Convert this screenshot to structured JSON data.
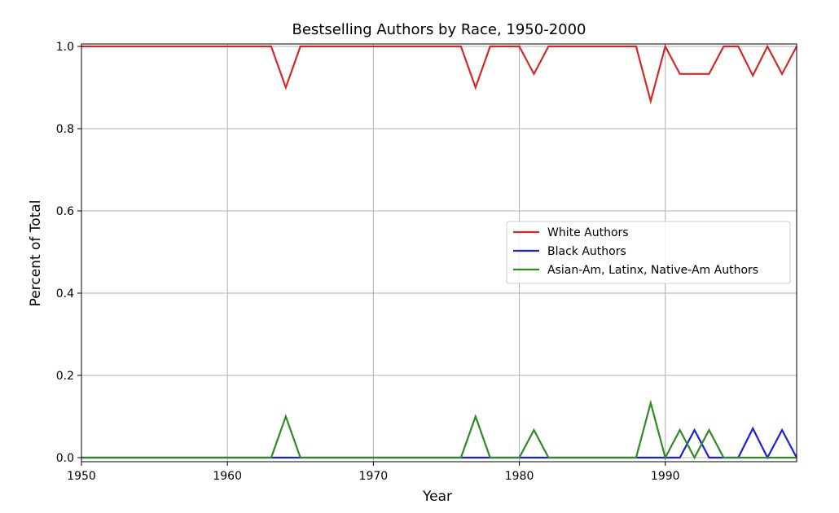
{
  "chart_data": {
    "type": "line",
    "title": "Bestselling Authors by Race, 1950-2000",
    "xlabel": "Year",
    "ylabel": "Percent of Total",
    "xlim": [
      1950,
      1999
    ],
    "ylim": [
      0.0,
      1.0
    ],
    "x_ticks": [
      1950,
      1960,
      1970,
      1980,
      1990
    ],
    "x_tick_labels": [
      "1950",
      "1960",
      "1970",
      "1980",
      "1990"
    ],
    "y_ticks": [
      0.0,
      0.2,
      0.4,
      0.6,
      0.8,
      1.0
    ],
    "y_tick_labels": [
      "0.0",
      "0.2",
      "0.4",
      "0.6",
      "0.8",
      "1.0"
    ],
    "grid": true,
    "legend_position": "center-right",
    "series": [
      {
        "name": "White Authors",
        "color": "#d62728",
        "x": [
          1950,
          1963,
          1964,
          1965,
          1976,
          1977,
          1978,
          1980,
          1981,
          1982,
          1988,
          1989,
          1990,
          1991,
          1993,
          1994,
          1995,
          1996,
          1997,
          1998,
          1999
        ],
        "y": [
          1.0,
          1.0,
          0.9,
          1.0,
          1.0,
          0.9,
          1.0,
          1.0,
          0.933,
          1.0,
          1.0,
          0.867,
          1.0,
          0.933,
          0.933,
          1.0,
          1.0,
          0.929,
          1.0,
          0.933,
          1.0
        ]
      },
      {
        "name": "Black Authors",
        "color": "#1f1fe0",
        "x": [
          1950,
          1991,
          1992,
          1993,
          1995,
          1996,
          1997,
          1998,
          1999
        ],
        "y": [
          0.0,
          0.0,
          0.067,
          0.0,
          0.0,
          0.071,
          0.0,
          0.067,
          0.0
        ]
      },
      {
        "name": "Asian-Am, Latinx, Native-Am Authors",
        "color": "#2e8b22",
        "x": [
          1950,
          1963,
          1964,
          1965,
          1976,
          1977,
          1978,
          1980,
          1981,
          1982,
          1988,
          1989,
          1990,
          1991,
          1992,
          1993,
          1994,
          1999
        ],
        "y": [
          0.0,
          0.0,
          0.1,
          0.0,
          0.0,
          0.1,
          0.0,
          0.0,
          0.067,
          0.0,
          0.0,
          0.133,
          0.0,
          0.067,
          0.0,
          0.067,
          0.0,
          0.0
        ]
      }
    ]
  }
}
